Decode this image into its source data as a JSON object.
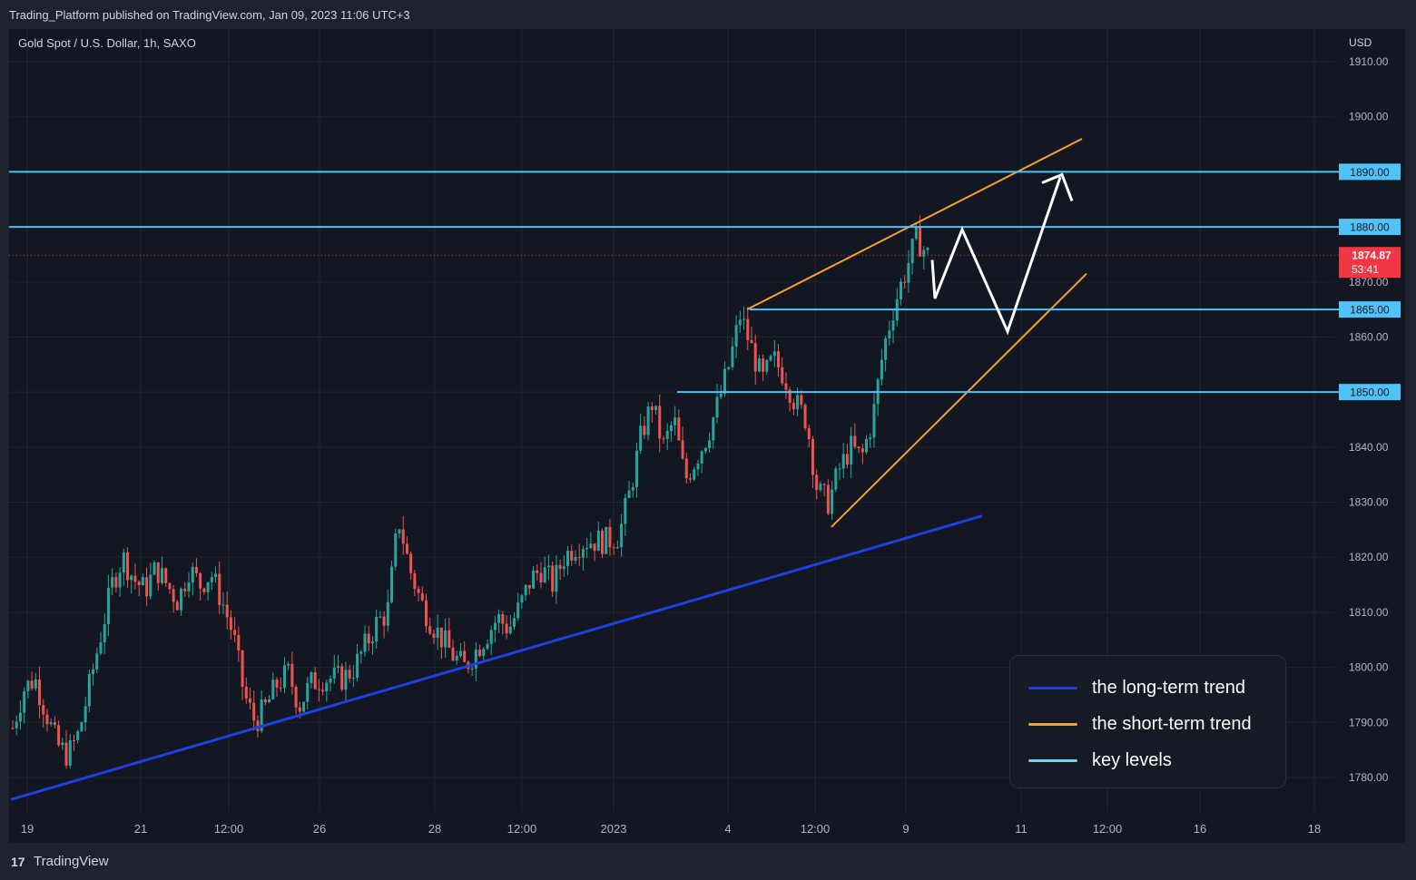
{
  "header": {
    "publisher_line": "Trading_Platform published on TradingView.com, Jan 09, 2023 11:06 UTC+3"
  },
  "symbol": {
    "label": "Gold Spot / U.S. Dollar, 1h, SAXO",
    "currency": "USD"
  },
  "footer": {
    "logo_icon": "tradingview-logo-icon",
    "logo_glyph": "17",
    "brand": "TradingView"
  },
  "colors": {
    "background": "#131722",
    "up_candle": "#26a69a",
    "down_candle": "#ef5350",
    "long_term_trend": "#1f3fe0",
    "short_term_trend": "#f7a12b",
    "key_level": "#4fc3f7",
    "price_badge": "#f23645"
  },
  "chart_data": {
    "type": "candlestick",
    "title": "Gold Spot / U.S. Dollar, 1h, SAXO",
    "ylabel": "USD",
    "ylim": [
      1775,
      1913
    ],
    "y_ticks": [
      "1910.00",
      "1900.00",
      "1890.00",
      "1880.00",
      "1870.00",
      "1860.00",
      "1850.00",
      "1840.00",
      "1830.00",
      "1820.00",
      "1810.00",
      "1800.00",
      "1790.00",
      "1780.00"
    ],
    "x_ticks": [
      "19",
      "21",
      "12:00",
      "26",
      "28",
      "12:00",
      "2023",
      "4",
      "12:00",
      "9",
      "11",
      "12:00",
      "16",
      "18"
    ],
    "grid": true,
    "price_path": [
      1789,
      1796,
      1798,
      1792,
      1786,
      1784,
      1788,
      1797,
      1806,
      1815,
      1820,
      1816,
      1814,
      1818,
      1815,
      1812,
      1818,
      1815,
      1817,
      1812,
      1806,
      1795,
      1790,
      1793,
      1797,
      1799,
      1793,
      1797,
      1798,
      1798,
      1798,
      1800,
      1804,
      1808,
      1810,
      1827,
      1818,
      1812,
      1808,
      1805,
      1802,
      1800,
      1803,
      1806,
      1809,
      1807,
      1811,
      1816,
      1818,
      1815,
      1820,
      1822,
      1823,
      1823,
      1823,
      1824,
      1832,
      1842,
      1848,
      1840,
      1845,
      1834,
      1838,
      1842,
      1848,
      1855,
      1864,
      1858,
      1852,
      1856,
      1853,
      1848,
      1845,
      1832,
      1830,
      1836,
      1840,
      1838,
      1845,
      1858,
      1866,
      1872,
      1878,
      1874.87
    ],
    "last_price": "1874.87",
    "countdown": "53:41",
    "key_levels": [
      {
        "value": 1890,
        "label": "1890.00"
      },
      {
        "value": 1880,
        "label": "1880.00"
      },
      {
        "value": 1865,
        "label": "1865.00"
      },
      {
        "value": 1850,
        "label": "1850.00"
      }
    ],
    "long_term_trend": {
      "from": {
        "x": "18 Dec",
        "y": 1776
      },
      "to": {
        "x": "10 Jan",
        "y": 1827.5
      }
    },
    "short_term_channel": {
      "upper": {
        "from": 1865,
        "to": 1896
      },
      "lower": {
        "from": 1825.5,
        "to": 1871.5
      }
    },
    "projection_path": [
      1867,
      1879.5,
      1861,
      1889
    ]
  },
  "legend": {
    "items": [
      {
        "label": "the long-term trend",
        "color": "#1f3fe0"
      },
      {
        "label": "the short-term trend",
        "color": "#f7a12b"
      },
      {
        "label": "key levels",
        "color": "#6fd3f7"
      }
    ]
  }
}
